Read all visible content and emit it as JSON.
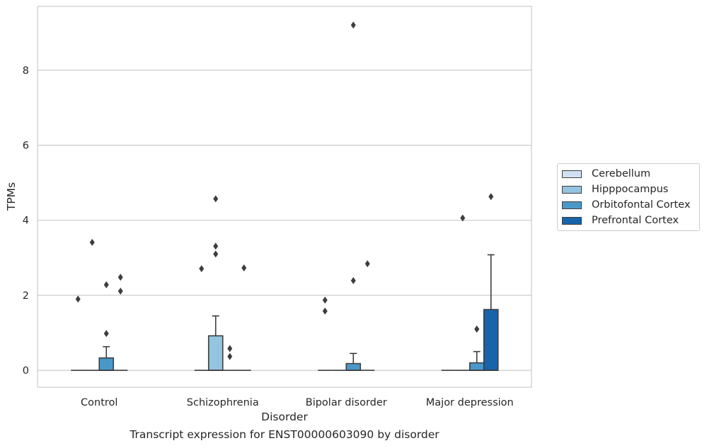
{
  "chart_data": {
    "type": "box",
    "xlabel": "Disorder",
    "ylabel": "TPMs",
    "ylim": [
      -0.45,
      9.7
    ],
    "yticks": [
      0,
      2,
      4,
      6,
      8
    ],
    "grid": true,
    "legend_position": "outside-right",
    "categories": [
      "Control",
      "Schizophrenia",
      "Bipolar disorder",
      "Major depression"
    ],
    "series": [
      {
        "name": "Cerebellum",
        "color": "#d0e1f2",
        "boxes": [
          {
            "q1": 0,
            "median": 0,
            "q3": 0,
            "whisker_low": 0,
            "whisker_high": 0,
            "outliers": [
              1.9
            ]
          },
          {
            "q1": 0,
            "median": 0,
            "q3": 0,
            "whisker_low": 0,
            "whisker_high": 0,
            "outliers": [
              2.71
            ]
          },
          {
            "q1": 0,
            "median": 0,
            "q3": 0,
            "whisker_low": 0,
            "whisker_high": 0,
            "outliers": [
              1.87,
              1.58
            ]
          },
          {
            "q1": 0,
            "median": 0,
            "q3": 0,
            "whisker_low": 0,
            "whisker_high": 0,
            "outliers": []
          }
        ]
      },
      {
        "name": "Hipppocampus",
        "color": "#94c4df",
        "boxes": [
          {
            "q1": 0,
            "median": 0,
            "q3": 0,
            "whisker_low": 0,
            "whisker_high": 0,
            "outliers": [
              3.41
            ]
          },
          {
            "q1": 0,
            "median": 0,
            "q3": 0.92,
            "whisker_low": 0,
            "whisker_high": 1.45,
            "outliers": [
              3.31,
              3.1,
              4.57
            ]
          },
          {
            "q1": 0,
            "median": 0,
            "q3": 0,
            "whisker_low": 0,
            "whisker_high": 0,
            "outliers": []
          },
          {
            "q1": 0,
            "median": 0,
            "q3": 0,
            "whisker_low": 0,
            "whisker_high": 0,
            "outliers": [
              4.06
            ]
          }
        ]
      },
      {
        "name": "Orbitofontal Cortex",
        "color": "#4a98c9",
        "boxes": [
          {
            "q1": 0,
            "median": 0,
            "q3": 0.33,
            "whisker_low": 0,
            "whisker_high": 0.63,
            "outliers": [
              2.28,
              0.98
            ]
          },
          {
            "q1": 0,
            "median": 0,
            "q3": 0,
            "whisker_low": 0,
            "whisker_high": 0,
            "outliers": [
              0.58,
              0.37
            ]
          },
          {
            "q1": 0,
            "median": 0,
            "q3": 0.18,
            "whisker_low": 0,
            "whisker_high": 0.45,
            "outliers": [
              2.39,
              9.2
            ]
          },
          {
            "q1": 0,
            "median": 0,
            "q3": 0.2,
            "whisker_low": 0,
            "whisker_high": 0.5,
            "outliers": [
              1.1,
              1.1
            ]
          }
        ]
      },
      {
        "name": "Prefrontal Cortex",
        "color": "#1764ab",
        "boxes": [
          {
            "q1": 0,
            "median": 0,
            "q3": 0,
            "whisker_low": 0,
            "whisker_high": 0,
            "outliers": [
              2.48,
              2.11
            ]
          },
          {
            "q1": 0,
            "median": 0,
            "q3": 0,
            "whisker_low": 0,
            "whisker_high": 0,
            "outliers": [
              2.73
            ]
          },
          {
            "q1": 0,
            "median": 0,
            "q3": 0,
            "whisker_low": 0,
            "whisker_high": 0,
            "outliers": [
              2.84
            ]
          },
          {
            "q1": 0,
            "median": 0,
            "q3": 1.62,
            "whisker_low": 0,
            "whisker_high": 3.08,
            "outliers": [
              4.63
            ]
          }
        ]
      }
    ]
  },
  "caption": "Transcript expression for ENST00000603090 by disorder"
}
